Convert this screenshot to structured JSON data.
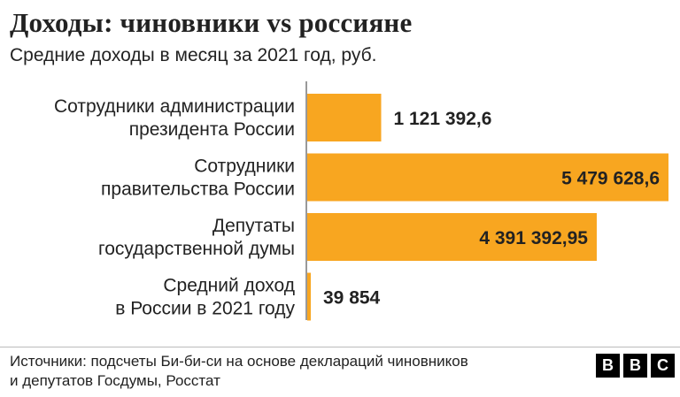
{
  "title": "Доходы: чиновники vs россияне",
  "subtitle": "Средние доходы в месяц за 2021 год, руб.",
  "source_lines": [
    "Источники: подсчеты Би-би-си на основе деклараций чиновников",
    "и депутатов Госдумы, Росстат"
  ],
  "logo_letters": [
    "B",
    "B",
    "C"
  ],
  "colors": {
    "bar": "#f8a620",
    "text": "#222222",
    "axis": "#333333"
  },
  "chart_data": {
    "type": "bar",
    "orientation": "horizontal",
    "title": "Доходы: чиновники vs россияне",
    "subtitle": "Средние доходы в месяц за 2021 год, руб.",
    "categories": [
      [
        "Сотрудники администрации",
        "президента России"
      ],
      [
        "Сотрудники",
        "правительства России"
      ],
      [
        "Депутаты",
        "государственной думы"
      ],
      [
        "Средний доход",
        "в России в 2021 году"
      ]
    ],
    "values": [
      1121392.6,
      5479628.6,
      4391392.95,
      39854
    ],
    "labels": [
      "1 121 392,6",
      "5 479 628,6",
      "4 391 392,95",
      "39 854"
    ],
    "xlim": [
      0,
      5479628.6
    ],
    "xlabel": "",
    "ylabel": "",
    "grid": false,
    "legend": "none"
  }
}
